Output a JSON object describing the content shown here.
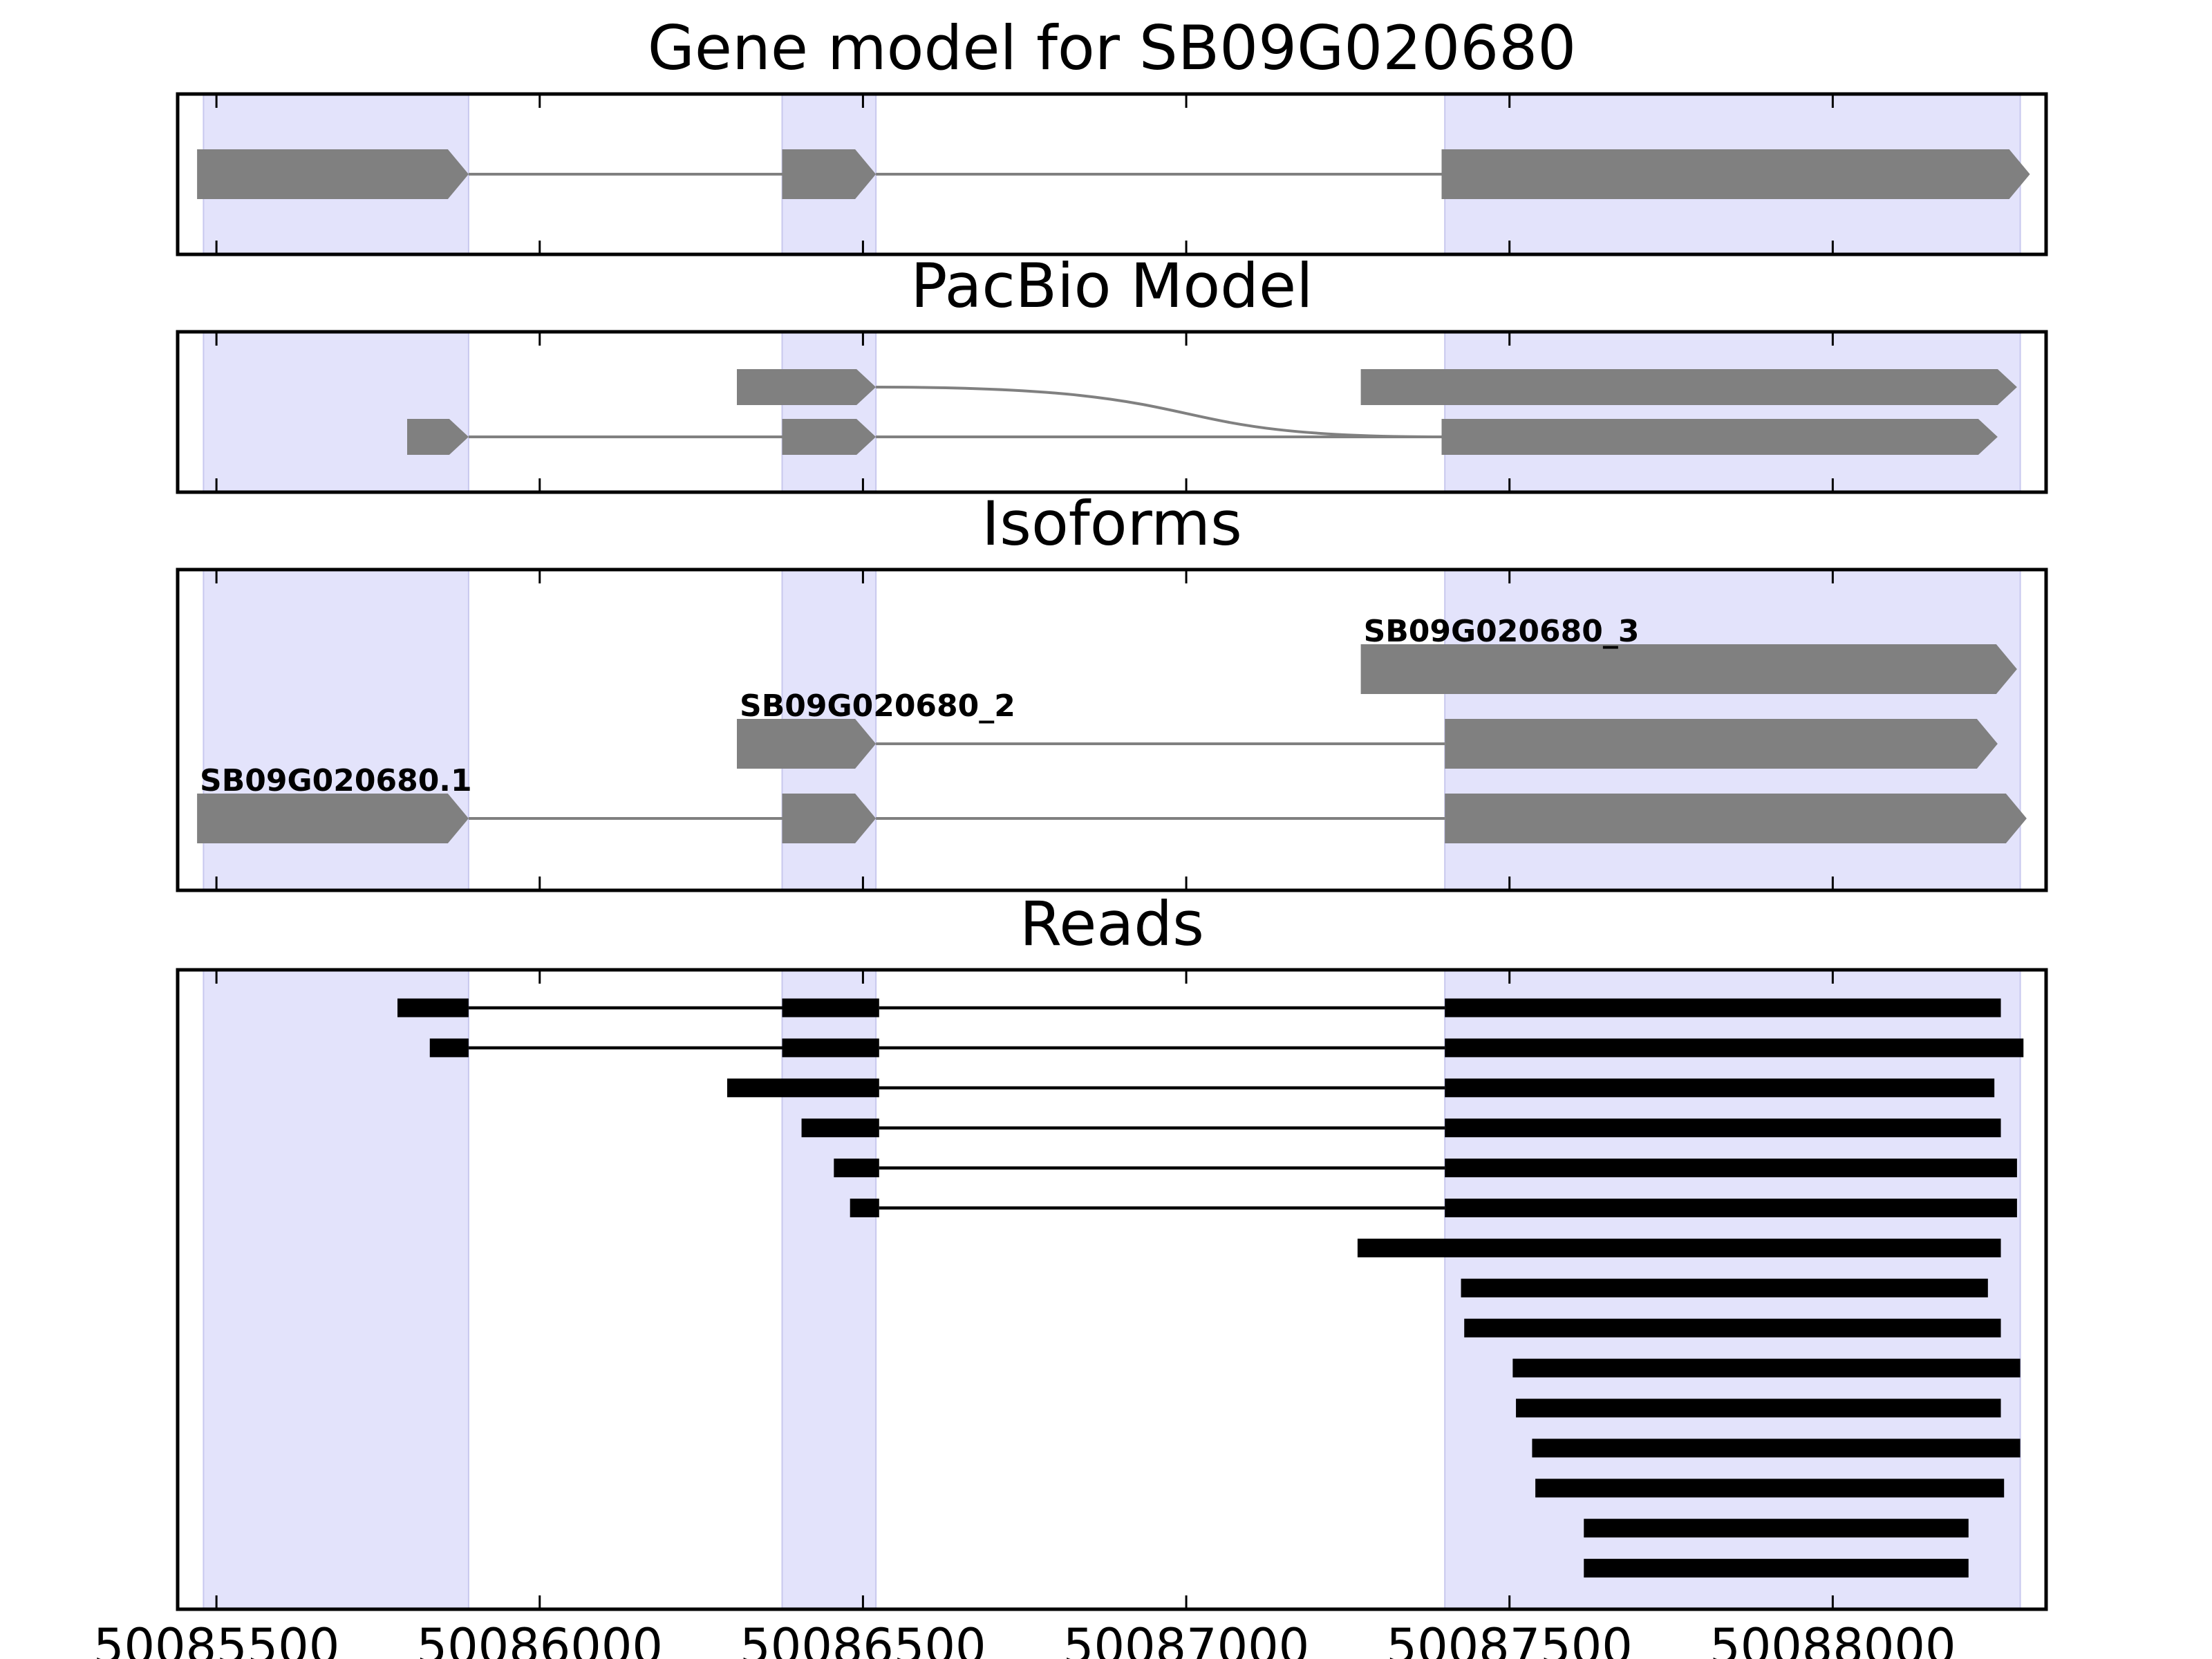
{
  "chart_data": {
    "type": "gene-model",
    "xlim": [
      50085440,
      50088330
    ],
    "xticks": [
      50085500,
      50086000,
      50086500,
      50087000,
      50087500,
      50088000
    ],
    "exon_highlights": [
      [
        50085480,
        50085890
      ],
      [
        50086375,
        50086520
      ],
      [
        50087400,
        50088290
      ]
    ],
    "colors": {
      "highlight": "#e3e3fb",
      "feature": "#808080",
      "read": "#000000"
    },
    "panels": [
      {
        "id": "gene-model",
        "title": "Gene model for SB09G020680",
        "rows": 1,
        "tracks": [
          {
            "row": 0,
            "exons": [
              [
                50085470,
                50085890
              ],
              [
                50086375,
                50086520
              ],
              [
                50087395,
                50088305
              ]
            ]
          }
        ]
      },
      {
        "id": "pacbio-model",
        "title": "PacBio Model",
        "rows": 2,
        "tracks": [
          {
            "row": 1,
            "exons": [
              [
                50086305,
                50086520
              ],
              [
                50087270,
                50088285
              ]
            ]
          },
          {
            "row": 0,
            "exons": [
              [
                50085795,
                50085890
              ],
              [
                50086375,
                50086520
              ],
              [
                50087395,
                50088255
              ]
            ]
          }
        ]
      },
      {
        "id": "isoforms",
        "title": "Isoforms",
        "rows": 3,
        "tracks": [
          {
            "row": 2,
            "label": "SB09G020680_3",
            "exons": [
              [
                50087270,
                50088285
              ]
            ]
          },
          {
            "row": 1,
            "label": "SB09G020680_2",
            "exons": [
              [
                50086305,
                50086520
              ],
              [
                50087400,
                50088255
              ]
            ]
          },
          {
            "row": 0,
            "label": "SB09G020680.1",
            "exons": [
              [
                50085470,
                50085890
              ],
              [
                50086375,
                50086520
              ],
              [
                50087400,
                50088300
              ]
            ]
          }
        ]
      },
      {
        "id": "reads",
        "title": "Reads",
        "rows": 15,
        "tracks": [
          {
            "row": 14,
            "exons": [
              [
                50085780,
                50085890
              ],
              [
                50086375,
                50086525
              ],
              [
                50087400,
                50088260
              ]
            ]
          },
          {
            "row": 13,
            "exons": [
              [
                50085830,
                50085890
              ],
              [
                50086375,
                50086525
              ],
              [
                50087400,
                50088295
              ]
            ]
          },
          {
            "row": 12,
            "exons": [
              [
                50086290,
                50086525
              ],
              [
                50087400,
                50088250
              ]
            ]
          },
          {
            "row": 11,
            "exons": [
              [
                50086405,
                50086525
              ],
              [
                50087400,
                50088260
              ]
            ]
          },
          {
            "row": 10,
            "exons": [
              [
                50086455,
                50086525
              ],
              [
                50087400,
                50088285
              ]
            ]
          },
          {
            "row": 9,
            "exons": [
              [
                50086480,
                50086525
              ],
              [
                50087400,
                50088285
              ]
            ]
          },
          {
            "row": 8,
            "exons": [
              [
                50087265,
                50088260
              ]
            ]
          },
          {
            "row": 7,
            "exons": [
              [
                50087425,
                50088240
              ]
            ]
          },
          {
            "row": 6,
            "exons": [
              [
                50087430,
                50088260
              ]
            ]
          },
          {
            "row": 5,
            "exons": [
              [
                50087505,
                50088290
              ]
            ]
          },
          {
            "row": 4,
            "exons": [
              [
                50087510,
                50088260
              ]
            ]
          },
          {
            "row": 3,
            "exons": [
              [
                50087535,
                50088290
              ]
            ]
          },
          {
            "row": 2,
            "exons": [
              [
                50087540,
                50088265
              ]
            ]
          },
          {
            "row": 1,
            "exons": [
              [
                50087615,
                50088210
              ]
            ]
          },
          {
            "row": 0,
            "exons": [
              [
                50087615,
                50088210
              ]
            ]
          }
        ]
      }
    ]
  }
}
